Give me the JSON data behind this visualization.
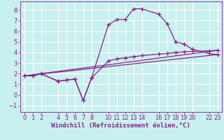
{
  "xlabel": "Windchill (Refroidissement éolien,°C)",
  "bg_color": "#c8f0ee",
  "grid_color": "#b0dde0",
  "line_color": "#882288",
  "xlim": [
    -0.5,
    23.5
  ],
  "ylim": [
    -1.6,
    8.8
  ],
  "xticks": [
    0,
    1,
    2,
    4,
    5,
    6,
    7,
    8,
    10,
    11,
    12,
    13,
    14,
    16,
    17,
    18,
    19,
    20,
    22,
    23
  ],
  "yticks": [
    -1,
    0,
    1,
    2,
    3,
    4,
    5,
    6,
    7,
    8
  ],
  "line1_x": [
    0,
    1,
    2,
    4,
    5,
    6,
    7,
    8,
    10,
    11,
    12,
    13,
    14,
    16,
    17,
    18,
    19,
    20,
    22,
    23
  ],
  "line1_y": [
    1.8,
    1.8,
    2.0,
    1.3,
    1.4,
    1.5,
    -0.5,
    1.6,
    6.6,
    7.1,
    7.1,
    8.1,
    8.1,
    7.6,
    6.7,
    5.0,
    4.8,
    4.3,
    3.9,
    3.8
  ],
  "line2_x": [
    0,
    1,
    2,
    4,
    5,
    6,
    7,
    8,
    10,
    11,
    12,
    13,
    14,
    16,
    17,
    18,
    19,
    20,
    22,
    23
  ],
  "line2_y": [
    1.8,
    1.8,
    2.0,
    1.3,
    1.4,
    1.5,
    -0.5,
    1.6,
    3.2,
    3.4,
    3.5,
    3.6,
    3.7,
    3.85,
    3.9,
    4.0,
    4.05,
    4.1,
    4.15,
    4.2
  ],
  "line3_x": [
    0,
    23
  ],
  "line3_y": [
    1.8,
    4.2
  ],
  "line4_x": [
    0,
    23
  ],
  "line4_y": [
    1.8,
    3.8
  ],
  "marker": "+",
  "markersize": 4,
  "linewidth": 0.9,
  "xlabel_fontsize": 6.5,
  "tick_fontsize": 6
}
